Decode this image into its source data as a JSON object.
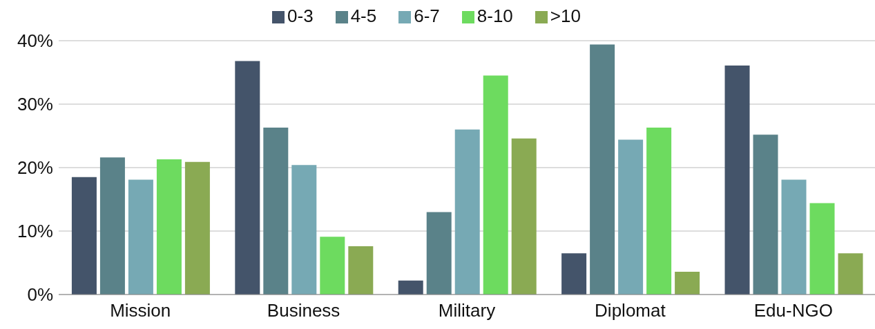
{
  "chart_data": {
    "type": "bar",
    "categories": [
      "Mission",
      "Business",
      "Military",
      "Diplomat",
      "Edu-NGO"
    ],
    "series": [
      {
        "name": "0-3",
        "color": "#44546a",
        "values": [
          18.5,
          36.8,
          2.2,
          6.5,
          36.1
        ]
      },
      {
        "name": "4-5",
        "color": "#5a8289",
        "values": [
          21.6,
          26.3,
          13.0,
          39.4,
          25.2
        ]
      },
      {
        "name": "6-7",
        "color": "#76a9b4",
        "values": [
          18.1,
          20.4,
          26.0,
          24.4,
          18.1
        ]
      },
      {
        "name": "8-10",
        "color": "#6ddb5f",
        "values": [
          21.3,
          9.1,
          34.5,
          26.3,
          14.4
        ]
      },
      {
        "name": ">10",
        "color": "#8aaa53",
        "values": [
          20.9,
          7.6,
          24.6,
          3.6,
          6.5
        ]
      }
    ],
    "ylim": [
      0,
      40
    ],
    "yticks": [
      {
        "value": 0,
        "label": "0%"
      },
      {
        "value": 10,
        "label": "10%"
      },
      {
        "value": 20,
        "label": "20%"
      },
      {
        "value": 30,
        "label": "30%"
      },
      {
        "value": 40,
        "label": "40%"
      }
    ],
    "grid": "y",
    "legend": "top"
  }
}
